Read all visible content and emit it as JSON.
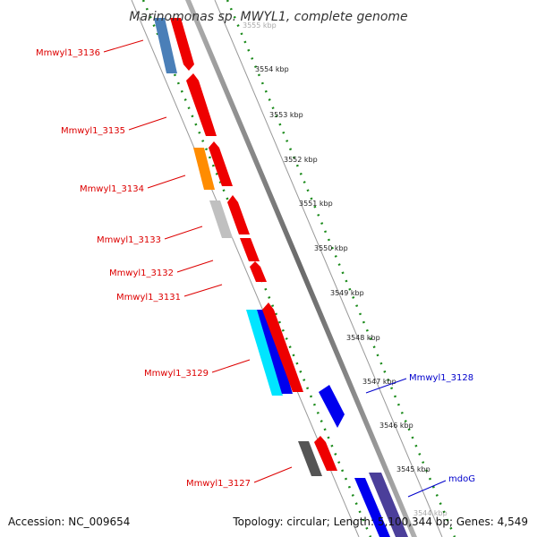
{
  "title": "Marinomonas sp. MWYL1, complete genome",
  "footer": {
    "accession": "Accession: NC_009654",
    "summary": "Topology: circular; Length: 5,100,344 bp; Genes: 4,549"
  },
  "kbp_ticks": [
    "3555 kbp",
    "3554 kbp",
    "3553 kbp",
    "3552 kbp",
    "3551 kbp",
    "3550 kbp",
    "3549 kbp",
    "3548 kbp",
    "3547 kbp",
    "3546 kbp",
    "3545 kbp",
    "3544 kbp"
  ],
  "left_labels": [
    "Mmwyl1_3136",
    "Mmwyl1_3135",
    "Mmwyl1_3134",
    "Mmwyl1_3133",
    "Mmwyl1_3132",
    "Mmwyl1_3131",
    "Mmwyl1_3129",
    "Mmwyl1_3127"
  ],
  "right_labels": [
    "Mmwyl1_3128",
    "mdoG"
  ],
  "colors": {
    "gene_red": "#ee0000",
    "gene_blue": "#0000ee",
    "gene_steel": "#4a7fb8",
    "gene_orange": "#ff8c00",
    "gene_light_gray": "#c0c0c0",
    "gene_dark_gray": "#555555",
    "gene_cyan": "#00e5ff",
    "gene_slate": "#4b3f9a",
    "backbone": "#808080",
    "tick_green": "#1a8a1a",
    "label_red": "#dd0000",
    "label_blue": "#0000cc"
  }
}
